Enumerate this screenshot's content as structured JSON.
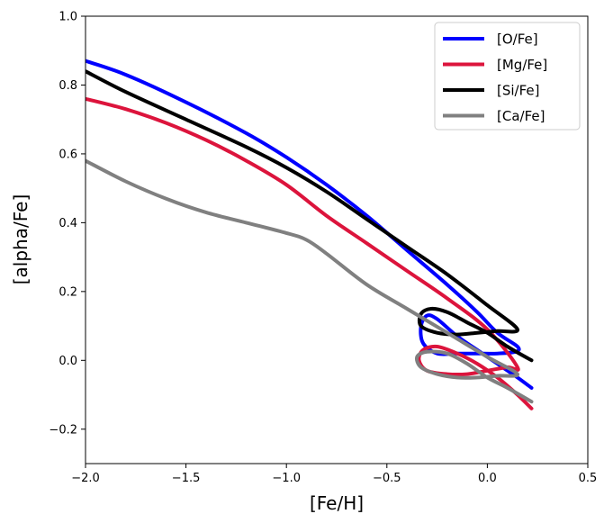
{
  "chart_data": {
    "type": "line",
    "xlabel": "[Fe/H]",
    "ylabel": "[alpha/Fe]",
    "xlim": [
      -2.0,
      0.5
    ],
    "ylim": [
      -0.3,
      1.0
    ],
    "xticks": [
      -2.0,
      -1.5,
      -1.0,
      -0.5,
      0.0,
      0.5
    ],
    "yticks": [
      -0.2,
      0.0,
      0.2,
      0.4,
      0.6,
      0.8,
      1.0
    ],
    "xtick_labels": [
      "−2.0",
      "−1.5",
      "−1.0",
      "−0.5",
      "0.0",
      "0.5"
    ],
    "ytick_labels": [
      "−0.2",
      "0.0",
      "0.2",
      "0.4",
      "0.6",
      "0.8",
      "1.0"
    ],
    "grid": false,
    "legend_position": "top-right",
    "series": [
      {
        "name": "[O/Fe]",
        "color": "#0000ff",
        "points": [
          [
            -2.0,
            0.87
          ],
          [
            -1.8,
            0.83
          ],
          [
            -1.5,
            0.75
          ],
          [
            -1.2,
            0.66
          ],
          [
            -1.0,
            0.59
          ],
          [
            -0.8,
            0.51
          ],
          [
            -0.6,
            0.42
          ],
          [
            -0.4,
            0.32
          ],
          [
            -0.2,
            0.22
          ],
          [
            -0.05,
            0.14
          ],
          [
            0.05,
            0.08
          ],
          [
            0.15,
            0.04
          ],
          [
            0.14,
            0.025
          ],
          [
            0.05,
            0.02
          ],
          [
            -0.05,
            0.02
          ],
          [
            -0.15,
            0.02
          ],
          [
            -0.25,
            0.02
          ],
          [
            -0.32,
            0.05
          ],
          [
            -0.33,
            0.1
          ],
          [
            -0.3,
            0.13
          ],
          [
            -0.25,
            0.12
          ],
          [
            -0.15,
            0.07
          ],
          [
            -0.05,
            0.03
          ],
          [
            0.05,
            -0.01
          ],
          [
            0.15,
            -0.05
          ],
          [
            0.22,
            -0.08
          ]
        ]
      },
      {
        "name": "[Mg/Fe]",
        "color": "#dc143c",
        "points": [
          [
            -2.0,
            0.76
          ],
          [
            -1.8,
            0.73
          ],
          [
            -1.6,
            0.69
          ],
          [
            -1.4,
            0.64
          ],
          [
            -1.2,
            0.58
          ],
          [
            -1.0,
            0.51
          ],
          [
            -0.8,
            0.42
          ],
          [
            -0.6,
            0.34
          ],
          [
            -0.4,
            0.26
          ],
          [
            -0.2,
            0.18
          ],
          [
            0.0,
            0.09
          ],
          [
            0.15,
            -0.02
          ],
          [
            0.1,
            -0.02
          ],
          [
            0.0,
            -0.03
          ],
          [
            -0.1,
            -0.04
          ],
          [
            -0.2,
            -0.04
          ],
          [
            -0.3,
            -0.03
          ],
          [
            -0.34,
            0.0
          ],
          [
            -0.32,
            0.03
          ],
          [
            -0.25,
            0.04
          ],
          [
            -0.15,
            0.02
          ],
          [
            -0.05,
            -0.01
          ],
          [
            0.05,
            -0.05
          ],
          [
            0.15,
            -0.1
          ],
          [
            0.22,
            -0.14
          ]
        ]
      },
      {
        "name": "[Si/Fe]",
        "color": "#000000",
        "points": [
          [
            -2.0,
            0.84
          ],
          [
            -1.8,
            0.78
          ],
          [
            -1.5,
            0.7
          ],
          [
            -1.2,
            0.62
          ],
          [
            -1.0,
            0.56
          ],
          [
            -0.8,
            0.49
          ],
          [
            -0.6,
            0.41
          ],
          [
            -0.4,
            0.33
          ],
          [
            -0.2,
            0.25
          ],
          [
            0.0,
            0.16
          ],
          [
            0.15,
            0.09
          ],
          [
            0.05,
            0.085
          ],
          [
            -0.05,
            0.08
          ],
          [
            -0.15,
            0.075
          ],
          [
            -0.25,
            0.08
          ],
          [
            -0.33,
            0.1
          ],
          [
            -0.33,
            0.135
          ],
          [
            -0.28,
            0.15
          ],
          [
            -0.2,
            0.14
          ],
          [
            -0.1,
            0.11
          ],
          [
            0.0,
            0.08
          ],
          [
            0.1,
            0.04
          ],
          [
            0.22,
            0.0
          ]
        ]
      },
      {
        "name": "[Ca/Fe]",
        "color": "#808080",
        "points": [
          [
            -2.0,
            0.58
          ],
          [
            -1.8,
            0.52
          ],
          [
            -1.6,
            0.47
          ],
          [
            -1.4,
            0.43
          ],
          [
            -1.2,
            0.4
          ],
          [
            -1.0,
            0.37
          ],
          [
            -0.9,
            0.35
          ],
          [
            -0.8,
            0.31
          ],
          [
            -0.6,
            0.22
          ],
          [
            -0.4,
            0.15
          ],
          [
            -0.2,
            0.08
          ],
          [
            0.0,
            0.01
          ],
          [
            0.15,
            -0.04
          ],
          [
            0.05,
            -0.045
          ],
          [
            -0.05,
            -0.05
          ],
          [
            -0.15,
            -0.05
          ],
          [
            -0.25,
            -0.04
          ],
          [
            -0.33,
            -0.02
          ],
          [
            -0.35,
            0.01
          ],
          [
            -0.3,
            0.025
          ],
          [
            -0.2,
            0.02
          ],
          [
            -0.1,
            -0.01
          ],
          [
            0.0,
            -0.05
          ],
          [
            0.1,
            -0.08
          ],
          [
            0.22,
            -0.12
          ]
        ]
      }
    ]
  }
}
